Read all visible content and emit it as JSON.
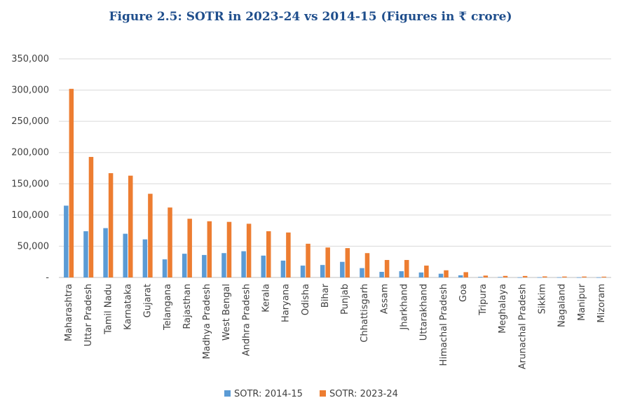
{
  "chart_data": {
    "type": "bar",
    "title": "Figure 2.5: SOTR in 2023-24 vs 2014-15 (Figures in ₹ crore)",
    "xlabel": "",
    "ylabel": "",
    "ylim": [
      0,
      350000
    ],
    "yticks": [
      0,
      50000,
      100000,
      150000,
      200000,
      250000,
      300000,
      350000
    ],
    "ytick_labels": [
      "-",
      "50,000",
      "100,000",
      "150,000",
      "200,000",
      "250,000",
      "300,000",
      "350,000"
    ],
    "grid": true,
    "legend_position": "bottom",
    "categories": [
      "Maharashtra",
      "Uttar Pradesh",
      "Tamil Nadu",
      "Karnataka",
      "Gujarat",
      "Telangana",
      "Rajasthan",
      "Madhya Pradesh",
      "West Bengal",
      "Andhra Pradesh",
      "Kerala",
      "Haryana",
      "Odisha",
      "Bihar",
      "Punjab",
      "Chhattisgarh",
      "Assam",
      "Jharkhand",
      "Uttarakhand",
      "Himachal Pradesh",
      "Goa",
      "Tripura",
      "Meghalaya",
      "Arunachal Pradesh",
      "Sikkim",
      "Nagaland",
      "Manipur",
      "Mizoram"
    ],
    "series": [
      {
        "name": "SOTR: 2014-15",
        "color": "#5b9bd5",
        "values": [
          115000,
          74000,
          79000,
          70000,
          61000,
          29000,
          38000,
          36000,
          39000,
          42000,
          35000,
          27000,
          19000,
          20000,
          25000,
          15000,
          9000,
          10000,
          8000,
          6000,
          3500,
          1000,
          800,
          300,
          400,
          400,
          300,
          300
        ]
      },
      {
        "name": "SOTR: 2023-24",
        "color": "#ed7d31",
        "values": [
          302000,
          193000,
          167000,
          163000,
          134000,
          112000,
          94000,
          90000,
          89000,
          86000,
          74000,
          72000,
          54000,
          48000,
          47000,
          39000,
          28000,
          28000,
          19000,
          11500,
          8500,
          3000,
          2500,
          2400,
          1700,
          1500,
          1500,
          1300
        ]
      }
    ]
  }
}
